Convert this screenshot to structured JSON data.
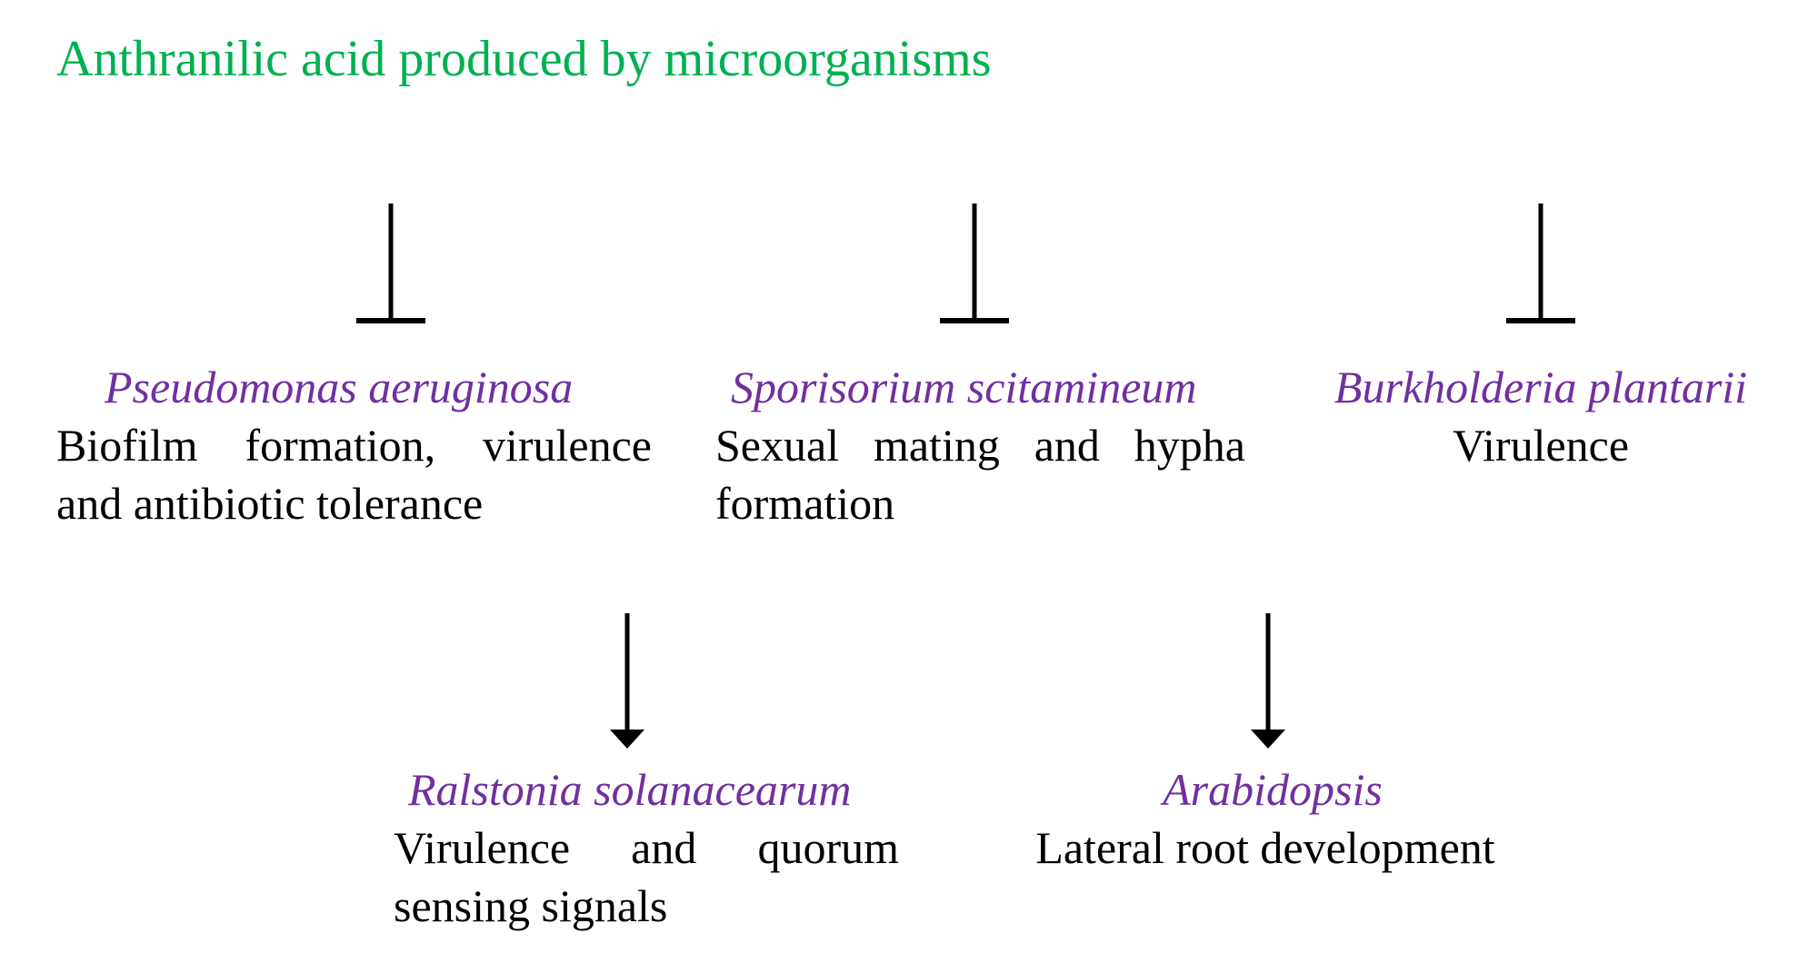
{
  "title": "Anthranilic acid produced by microorganisms",
  "colors": {
    "title": "#00B050",
    "species": "#7030A0",
    "text": "#000000"
  },
  "inhibited": [
    {
      "species": "Pseudomonas aeruginosa",
      "effect": "Biofilm formation, virulence and antibiotic tolerance",
      "relation": "inhibits"
    },
    {
      "species": "Sporisorium scitamineum",
      "effect": "Sexual mating and hypha formation",
      "relation": "inhibits"
    },
    {
      "species": "Burkholderia plantarii",
      "effect": "Virulence",
      "relation": "inhibits"
    }
  ],
  "promoted": [
    {
      "species": "Ralstonia solanacearum",
      "effect": "Virulence and quorum sensing signals",
      "relation": "promotes"
    },
    {
      "species": "Arabidopsis",
      "effect": "Lateral root development",
      "relation": "promotes"
    }
  ]
}
